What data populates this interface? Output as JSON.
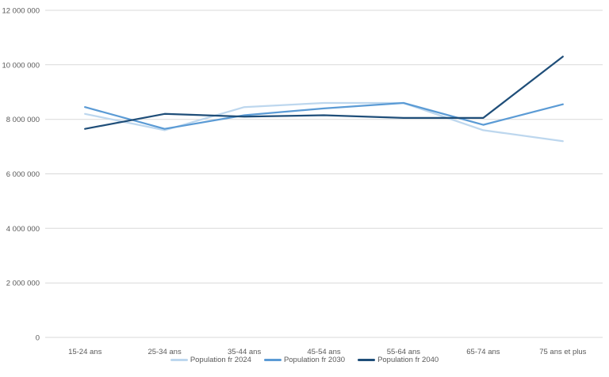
{
  "chart_data": {
    "type": "line",
    "title": "",
    "xlabel": "",
    "ylabel": "",
    "categories": [
      "15-24 ans",
      "25-34 ans",
      "35-44 ans",
      "45-54 ans",
      "55-64 ans",
      "65-74 ans",
      "75 ans et plus"
    ],
    "series": [
      {
        "name": "Population fr 2024",
        "color": "#bdd7ee",
        "values": [
          8200000,
          7600000,
          8450000,
          8600000,
          8600000,
          7600000,
          7200000
        ]
      },
      {
        "name": "Population fr 2030",
        "color": "#5b9bd5",
        "values": [
          8450000,
          7650000,
          8150000,
          8400000,
          8600000,
          7800000,
          8550000
        ]
      },
      {
        "name": "Population fr 2040",
        "color": "#1f4e79",
        "values": [
          7650000,
          8200000,
          8100000,
          8150000,
          8050000,
          8050000,
          10300000
        ]
      }
    ],
    "ylim": [
      0,
      12000000
    ],
    "ytick_step": 2000000,
    "ytick_labels": [
      "0",
      "2 000 000",
      "4 000 000",
      "6 000 000",
      "8 000 000",
      "10 000 000",
      "12 000 000"
    ],
    "grid": true,
    "legend_position": "bottom"
  },
  "styles": {
    "grid_color": "#d9d9d9",
    "axis_text_color": "#595959",
    "background": "#ffffff"
  }
}
